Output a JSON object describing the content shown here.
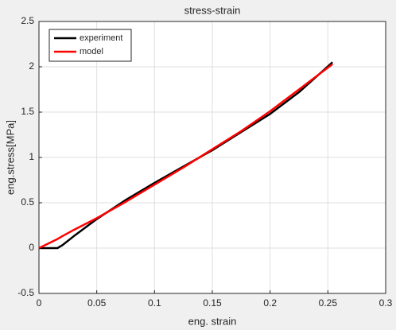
{
  "chart_data": {
    "type": "line",
    "title": "stress-strain",
    "x_label": "eng. strain",
    "y_label": "eng.stress[MPa]",
    "x": [
      0,
      0.016,
      0.02,
      0.03,
      0.05,
      0.075,
      0.1,
      0.125,
      0.15,
      0.175,
      0.2,
      0.225,
      0.254
    ],
    "series": [
      {
        "name": "experiment",
        "color": "#000000",
        "values": [
          0,
          0,
          0.03,
          0.13,
          0.32,
          0.53,
          0.72,
          0.9,
          1.08,
          1.28,
          1.48,
          1.72,
          2.05
        ]
      },
      {
        "name": "model",
        "color": "#ff0000",
        "values": [
          0,
          0.1,
          0.13,
          0.2,
          0.33,
          0.51,
          0.7,
          0.89,
          1.09,
          1.29,
          1.51,
          1.75,
          2.03
        ]
      }
    ],
    "xlim": [
      0,
      0.3
    ],
    "xticks": [
      0,
      0.05,
      0.1,
      0.15,
      0.2,
      0.25,
      0.3
    ],
    "ylim": [
      -0.5,
      2.5
    ],
    "yticks": [
      -0.5,
      0,
      0.5,
      1,
      1.5,
      2,
      2.5
    ],
    "grid": true,
    "legend": "upper-left"
  }
}
